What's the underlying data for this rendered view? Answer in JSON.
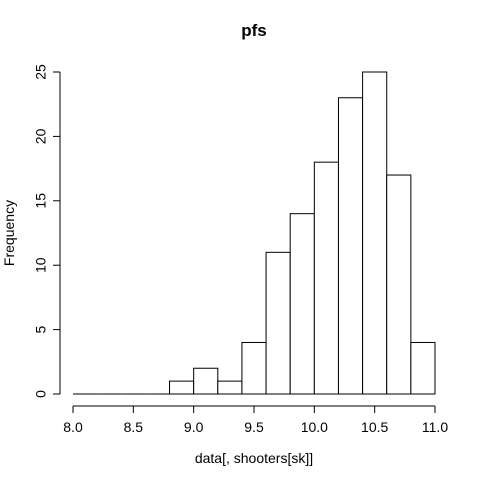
{
  "chart_data": {
    "type": "histogram",
    "title": "pfs",
    "xlabel": "data[, shooters[sk]]",
    "ylabel": "Frequency",
    "bin_edges": [
      8.0,
      8.2,
      8.4,
      8.6,
      8.8,
      9.0,
      9.2,
      9.4,
      9.6,
      9.8,
      10.0,
      10.2,
      10.4,
      10.6,
      10.8,
      11.0
    ],
    "counts": [
      0,
      0,
      0,
      0,
      1,
      2,
      1,
      4,
      11,
      14,
      18,
      23,
      25,
      17,
      4
    ],
    "xlim": [
      8.0,
      11.0
    ],
    "ylim": [
      0,
      25
    ],
    "x_ticks": [
      "8.0",
      "8.5",
      "9.0",
      "9.5",
      "10.0",
      "10.5",
      "11.0"
    ],
    "y_ticks": [
      "0",
      "5",
      "10",
      "15",
      "20",
      "25"
    ],
    "grid": false,
    "bar_fill": "#ffffff",
    "bar_stroke": "#000000"
  }
}
